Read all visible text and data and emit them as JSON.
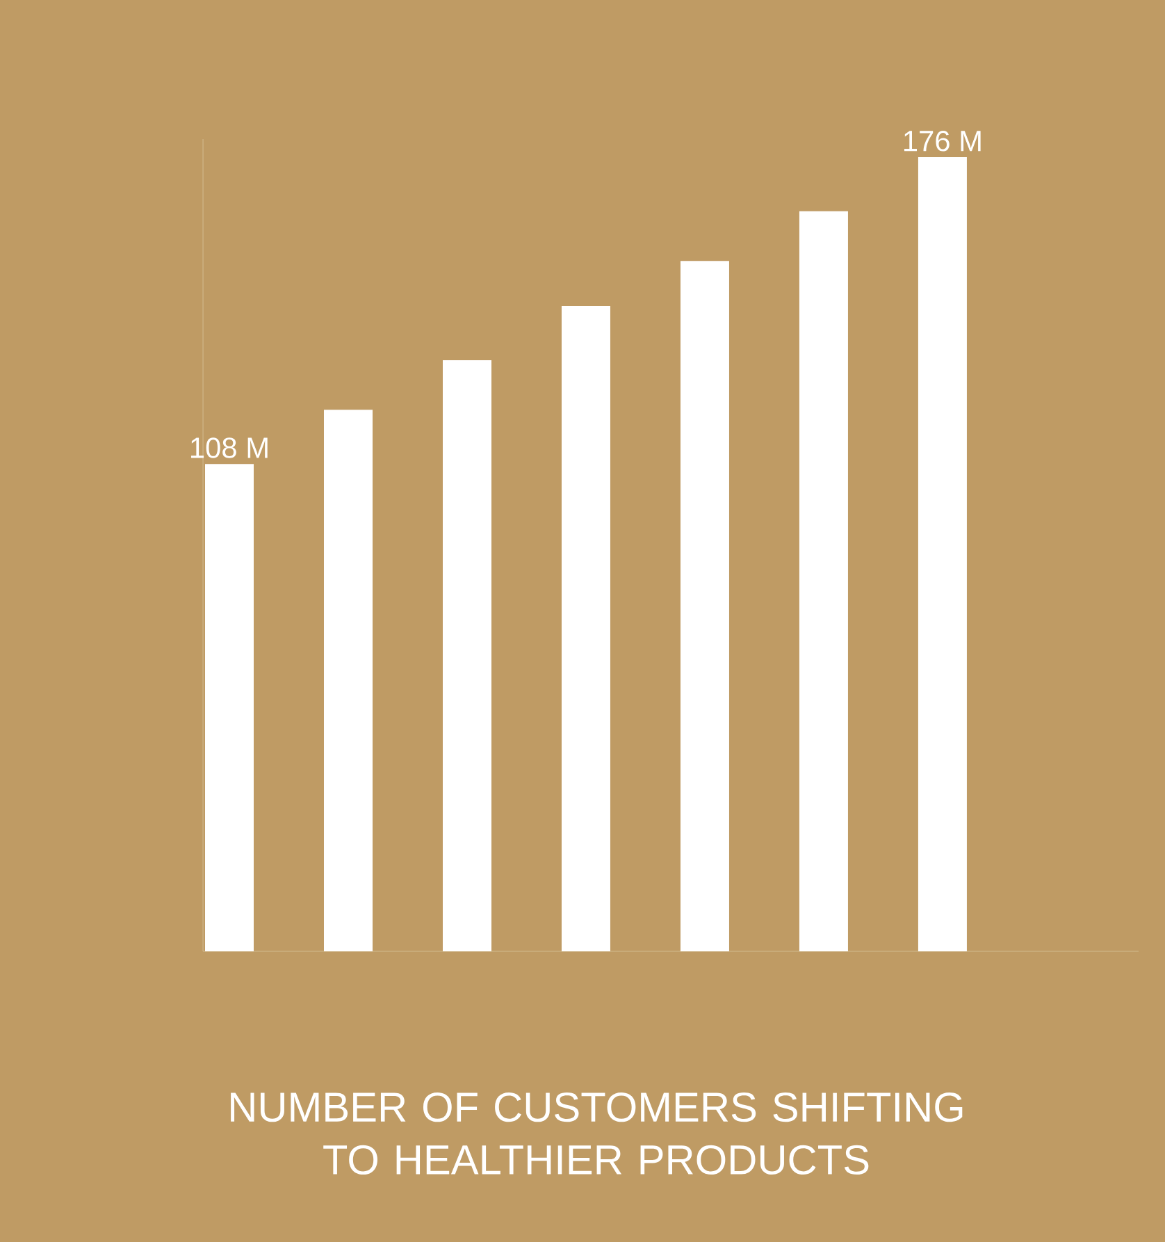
{
  "chart_data": {
    "type": "bar",
    "title": "NUMBER OF CUSTOMERS SHIFTING TO HEALTHIER PRODUCTS",
    "categories": [
      null,
      null,
      null,
      null,
      null,
      null,
      null
    ],
    "values": [
      108,
      120,
      131,
      143,
      153,
      164,
      176
    ],
    "value_labels": [
      "108 M",
      null,
      null,
      null,
      null,
      null,
      "176 M"
    ],
    "color": "#ffffff",
    "ylim": [
      0,
      180
    ]
  }
}
